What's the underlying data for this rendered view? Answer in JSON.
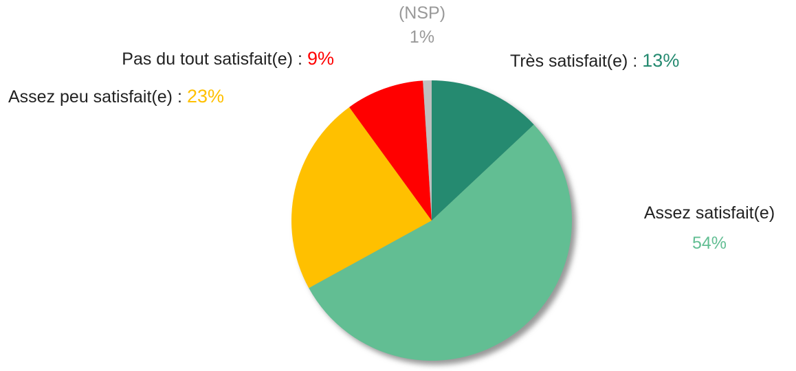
{
  "chart_data": {
    "type": "pie",
    "categories": [
      "Très satisfait(e)",
      "Assez satisfait(e)",
      "Assez peu satisfait(e)",
      "Pas du tout satisfait(e)",
      "(NSP)"
    ],
    "values": [
      13,
      54,
      23,
      9,
      1
    ],
    "value_labels": [
      "13%",
      "54%",
      "23%",
      "9%",
      "1%"
    ],
    "colors": [
      "#258a70",
      "#62be93",
      "#ffc000",
      "#ff0000",
      "#bfbfbf"
    ],
    "label_separator": ":"
  }
}
